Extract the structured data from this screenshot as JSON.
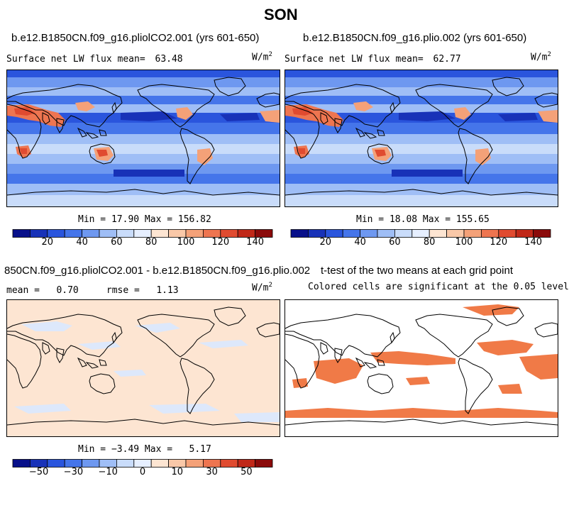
{
  "page_title": "SON",
  "colors": {
    "scale": [
      "#08108a",
      "#1832b8",
      "#2a55dd",
      "#4575ea",
      "#6e98f0",
      "#9fbef6",
      "#c9dcfa",
      "#e6efff",
      "#fde5d2",
      "#f9c8a8",
      "#f4a178",
      "#ee7550",
      "#e04b30",
      "#c02818",
      "#8b0a0a"
    ],
    "diff_fill": "#fde5d2",
    "diff_light": "#dde8fb",
    "signif": "#f07a47",
    "coast": "#000000"
  },
  "panels": [
    {
      "name": "left-top",
      "title": "b.e12.B1850CN.f09_g16.pliolCO2.001 (yrs 601-650)",
      "stat_label": "Surface net LW flux mean=",
      "stat_value": "63.48",
      "units": "W/m",
      "units_exp": "2",
      "minmax": "Min =  17.90 Max = 156.82",
      "colorbar_ticks": [
        "20",
        "40",
        "60",
        "80",
        "100",
        "120",
        "140"
      ]
    },
    {
      "name": "right-top",
      "title": "b.e12.B1850CN.f09_g16.plio.002 (yrs 601-650)",
      "stat_label": "Surface net LW flux mean=",
      "stat_value": "62.77",
      "units": "W/m",
      "units_exp": "2",
      "minmax": "Min =  18.08 Max = 155.65",
      "colorbar_ticks": [
        "20",
        "40",
        "60",
        "80",
        "100",
        "120",
        "140"
      ]
    },
    {
      "name": "left-bottom",
      "title": "850CN.f09_g16.pliolCO2.001 - b.e12.B1850CN.f09_g16.plio.002",
      "stat_label": "mean =   0.70     rmse =   1.13",
      "units": "W/m",
      "units_exp": "2",
      "minmax": "Min = −3.49 Max =   5.17",
      "colorbar_ticks": [
        "−50",
        "−30",
        "−10",
        "0",
        "10",
        "30",
        "50"
      ]
    },
    {
      "name": "right-bottom",
      "title": "t-test of the two means at each grid point",
      "stat_label": "Colored cells are significant at the 0.05 level"
    }
  ],
  "chart_data": [
    {
      "type": "heatmap",
      "title": "b.e12.B1850CN.f09_g16.pliolCO2.001 (yrs 601-650)",
      "variable": "Surface net LW flux",
      "mean": 63.48,
      "min": 17.9,
      "max": 156.82,
      "units": "W/m2",
      "colorbar_levels": [
        10,
        20,
        30,
        40,
        50,
        60,
        70,
        80,
        90,
        100,
        110,
        120,
        130,
        140
      ],
      "colorbar_tick_labels": [
        20,
        40,
        60,
        80,
        100,
        120,
        140
      ]
    },
    {
      "type": "heatmap",
      "title": "b.e12.B1850CN.f09_g16.plio.002 (yrs 601-650)",
      "variable": "Surface net LW flux",
      "mean": 62.77,
      "min": 18.08,
      "max": 155.65,
      "units": "W/m2",
      "colorbar_levels": [
        10,
        20,
        30,
        40,
        50,
        60,
        70,
        80,
        90,
        100,
        110,
        120,
        130,
        140
      ],
      "colorbar_tick_labels": [
        20,
        40,
        60,
        80,
        100,
        120,
        140
      ]
    },
    {
      "type": "heatmap",
      "title": "850CN.f09_g16.pliolCO2.001 - b.e12.B1850CN.f09_g16.plio.002",
      "mean": 0.7,
      "rmse": 1.13,
      "min": -3.49,
      "max": 5.17,
      "units": "W/m2",
      "colorbar_tick_labels": [
        -50,
        -30,
        -10,
        0,
        10,
        30,
        50
      ]
    },
    {
      "type": "heatmap",
      "title": "t-test of the two means at each grid point",
      "annotation": "Colored cells are significant at the 0.05 level",
      "significance_level": 0.05
    }
  ]
}
